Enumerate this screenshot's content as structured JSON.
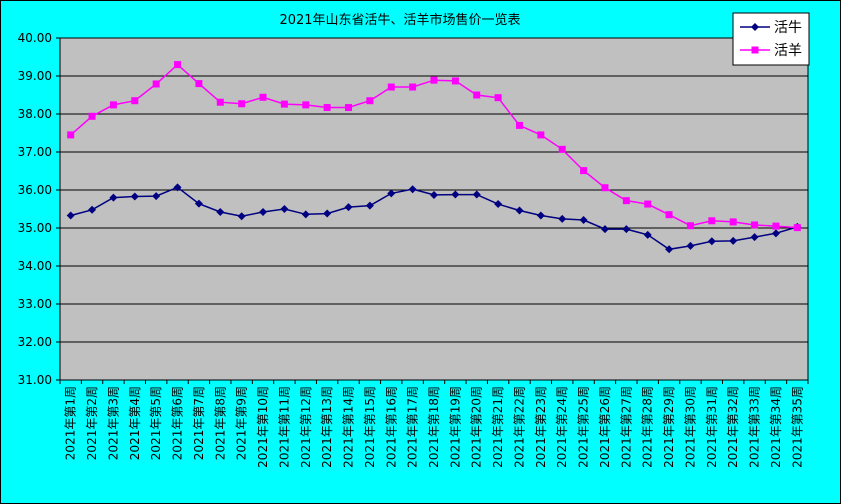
{
  "chart_data": {
    "type": "line",
    "title": "2021年山东省活牛、活羊市场售价一览表",
    "ylim": [
      31,
      40
    ],
    "yticks": [
      "31.00",
      "32.00",
      "33.00",
      "34.00",
      "35.00",
      "36.00",
      "37.00",
      "38.00",
      "39.00",
      "40.00"
    ],
    "grid": true,
    "legend_position": "top-right",
    "categories": [
      "2021年第1周",
      "2021年第2周",
      "2021年第3周",
      "2021年第4周",
      "2021年第5周",
      "2021年第6周",
      "2021年第7周",
      "2021年第8周",
      "2021年第9周",
      "2021年第10周",
      "2021年第11周",
      "2021年第12周",
      "2021年第13周",
      "2021年第14周",
      "2021年第15周",
      "2021年第16周",
      "2021年第17周",
      "2021年第18周",
      "2021年第19周",
      "2021年第20周",
      "2021年第21周",
      "2021年第22周",
      "2021年第23周",
      "2021年第24周",
      "2021年第25周",
      "2021年第26周",
      "2021年第27周",
      "2021年第28周",
      "2021年第29周",
      "2021年第30周",
      "2021年第31周",
      "2021年第32周",
      "2021年第33周",
      "2021年第34周",
      "2021年第35周"
    ],
    "series": [
      {
        "name": "活牛",
        "color": "#000080",
        "marker": "diamond",
        "values": [
          35.33,
          35.48,
          35.8,
          35.83,
          35.84,
          36.07,
          35.64,
          35.42,
          35.31,
          35.42,
          35.5,
          35.36,
          35.38,
          35.55,
          35.59,
          35.91,
          36.02,
          35.87,
          35.88,
          35.88,
          35.63,
          35.46,
          35.33,
          35.24,
          35.21,
          34.97,
          34.97,
          34.82,
          34.44,
          34.53,
          34.65,
          34.66,
          34.76,
          34.86,
          35.03
        ]
      },
      {
        "name": "活羊",
        "color": "#ff00ff",
        "marker": "square",
        "values": [
          37.45,
          37.94,
          38.24,
          38.35,
          38.79,
          39.3,
          38.8,
          38.31,
          38.27,
          38.44,
          38.26,
          38.24,
          38.17,
          38.17,
          38.35,
          38.71,
          38.71,
          38.89,
          38.87,
          38.5,
          38.43,
          37.7,
          37.45,
          37.07,
          36.51,
          36.06,
          35.72,
          35.63,
          35.35,
          35.06,
          35.19,
          35.16,
          35.08,
          35.05,
          35.01
        ]
      }
    ]
  }
}
